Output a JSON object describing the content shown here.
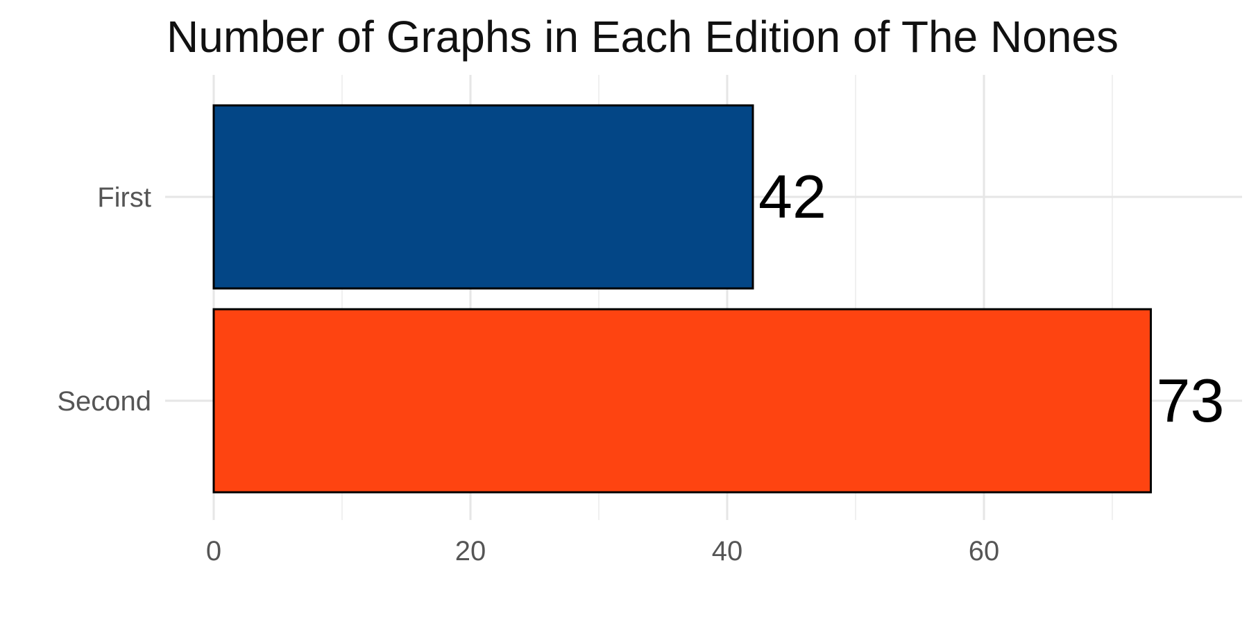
{
  "chart_data": {
    "type": "bar",
    "orientation": "horizontal",
    "title": "Number of Graphs in Each Edition of The Nones",
    "xlabel": "",
    "ylabel": "",
    "categories": [
      "First",
      "Second"
    ],
    "values": [
      42,
      73
    ],
    "data_labels": [
      "42",
      "73"
    ],
    "colors": [
      "#034686",
      "#fe4411"
    ],
    "xlim": [
      0,
      80
    ],
    "x_ticks": [
      0,
      20,
      40,
      60
    ],
    "x_tick_labels": [
      "0",
      "20",
      "40",
      "60"
    ],
    "x_minor_ticks": [
      10,
      30,
      50,
      70
    ],
    "grid": true,
    "legend": "none"
  }
}
